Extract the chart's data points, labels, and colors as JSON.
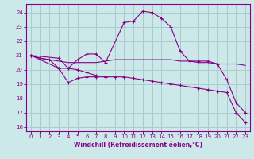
{
  "xlabel": "Windchill (Refroidissement éolien,°C)",
  "background_color": "#cce8e8",
  "grid_color": "#aacccc",
  "line_color": "#880088",
  "xlim": [
    -0.5,
    23.5
  ],
  "ylim": [
    15.7,
    24.6
  ],
  "yticks": [
    16,
    17,
    18,
    19,
    20,
    21,
    22,
    23,
    24
  ],
  "xticks": [
    0,
    1,
    2,
    3,
    4,
    5,
    6,
    7,
    8,
    9,
    10,
    11,
    12,
    13,
    14,
    15,
    16,
    17,
    18,
    19,
    20,
    21,
    22,
    23
  ],
  "series": [
    {
      "x": [
        0,
        1,
        2,
        3,
        4,
        5,
        6,
        7,
        8,
        9,
        10,
        11,
        12,
        13,
        14,
        15,
        16,
        17,
        18,
        19,
        20,
        21,
        22,
        23
      ],
      "y": [
        21.0,
        20.8,
        20.7,
        20.6,
        20.5,
        20.5,
        20.5,
        20.5,
        20.6,
        20.7,
        20.7,
        20.7,
        20.7,
        20.7,
        20.7,
        20.7,
        20.6,
        20.6,
        20.5,
        20.5,
        20.4,
        20.4,
        20.4,
        20.3
      ],
      "marker": false
    },
    {
      "x": [
        0,
        1,
        2,
        3,
        4,
        5,
        6,
        7,
        8,
        9,
        10,
        11,
        12,
        13,
        14,
        15,
        16,
        17,
        18,
        19,
        20,
        21,
        22,
        23
      ],
      "y": [
        21.0,
        20.8,
        20.7,
        20.1,
        19.1,
        19.4,
        19.5,
        19.5,
        19.5,
        19.5,
        19.5,
        19.4,
        19.3,
        19.2,
        19.1,
        19.0,
        18.9,
        18.8,
        18.7,
        18.6,
        18.5,
        18.4,
        17.0,
        16.3
      ],
      "marker": true
    },
    {
      "x": [
        0,
        3,
        4,
        5,
        6,
        7,
        8,
        10,
        11,
        12,
        13,
        14,
        15,
        16,
        17,
        18,
        19,
        20,
        21,
        22,
        23
      ],
      "y": [
        21.0,
        20.8,
        20.1,
        20.7,
        21.1,
        21.1,
        20.5,
        23.3,
        23.4,
        24.1,
        24.0,
        23.6,
        23.0,
        21.3,
        20.6,
        20.6,
        20.6,
        20.4,
        19.3,
        17.7,
        17.0
      ],
      "marker": true
    },
    {
      "x": [
        0,
        3,
        4,
        5,
        6,
        7,
        8
      ],
      "y": [
        21.0,
        20.1,
        20.1,
        20.0,
        19.8,
        19.6,
        19.5
      ],
      "marker": true
    }
  ]
}
